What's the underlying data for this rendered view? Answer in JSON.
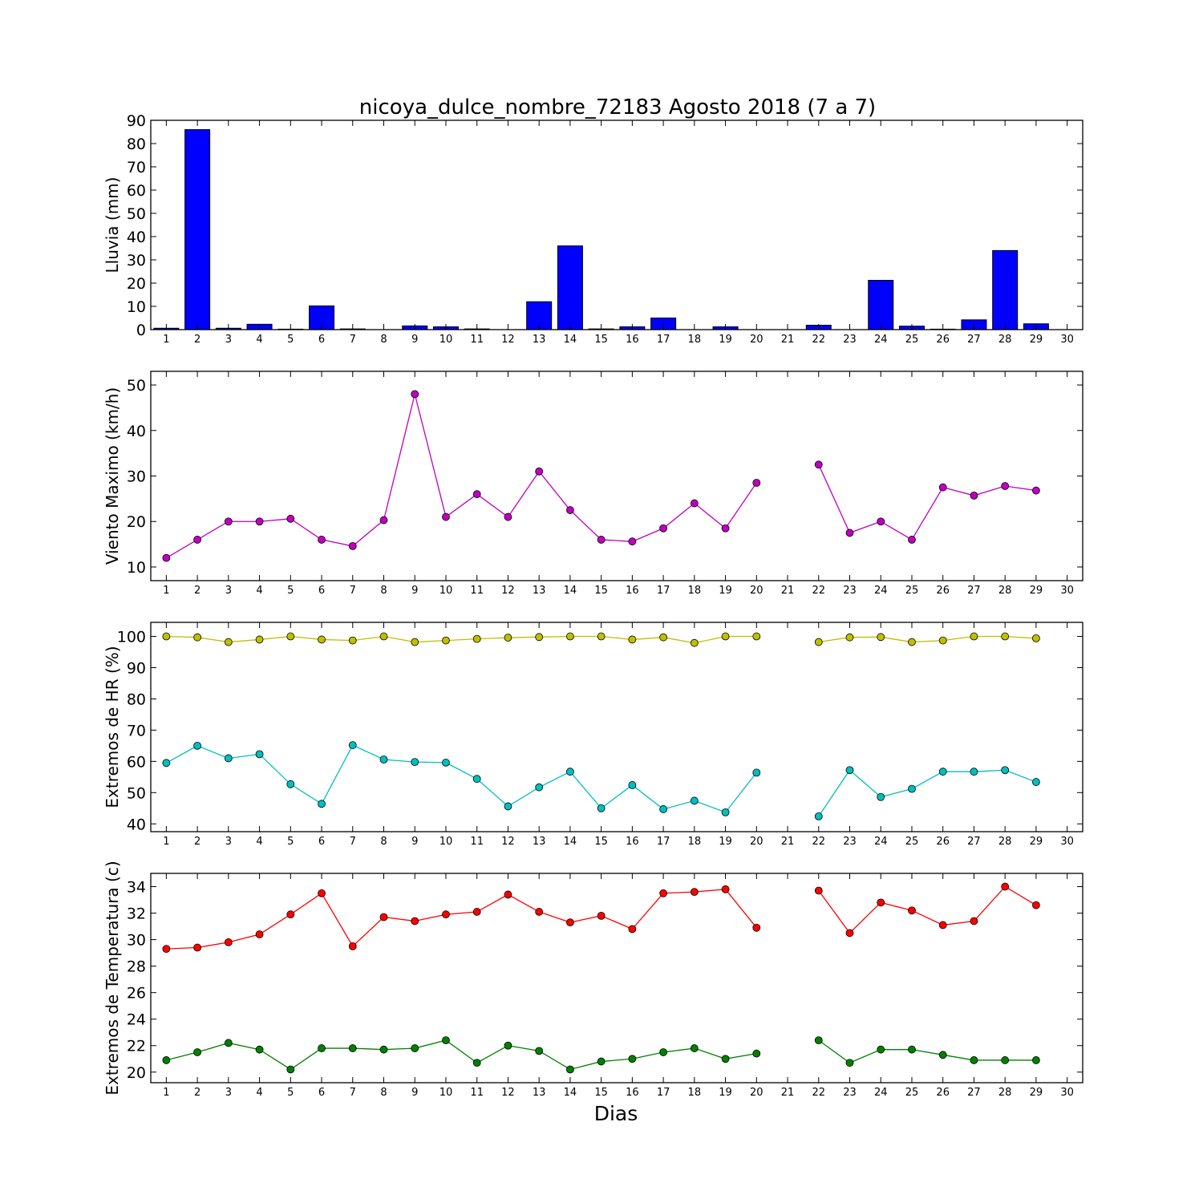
{
  "title": "nicoya_dulce_nombre_72183 Agosto 2018  (7 a 7)",
  "xlabel": "Dias",
  "chart_data": [
    {
      "type": "bar",
      "ylabel": "Lluvia (mm)",
      "ylim": [
        0,
        90
      ],
      "yticks": [
        0,
        10,
        20,
        30,
        40,
        50,
        60,
        70,
        80,
        90
      ],
      "xlim": [
        0.5,
        30.5
      ],
      "xticks": [
        1,
        2,
        3,
        4,
        5,
        6,
        7,
        8,
        9,
        10,
        11,
        12,
        13,
        14,
        15,
        16,
        17,
        18,
        19,
        20,
        21,
        22,
        23,
        24,
        25,
        26,
        27,
        28,
        29,
        30
      ],
      "grid": false,
      "series": [
        {
          "color": "#0000ff",
          "x": [
            1,
            2,
            3,
            4,
            5,
            6,
            7,
            8,
            9,
            10,
            11,
            12,
            13,
            14,
            15,
            16,
            17,
            18,
            19,
            20,
            21,
            22,
            23,
            24,
            25,
            26,
            27,
            28,
            29,
            30
          ],
          "values": [
            0.6,
            86,
            0.6,
            2.3,
            0.2,
            10.2,
            0.3,
            0,
            1.6,
            1.2,
            0.3,
            0,
            12,
            36,
            0.3,
            1.2,
            5,
            0,
            1.2,
            0,
            0,
            1.9,
            0,
            21.2,
            1.5,
            0.2,
            4.2,
            34,
            2.5,
            0
          ]
        }
      ]
    },
    {
      "type": "line",
      "ylabel": "Viento Maximo (km/h)",
      "ylim": [
        7,
        53
      ],
      "yticks": [
        10,
        20,
        30,
        40,
        50
      ],
      "xlim": [
        0.5,
        30.5
      ],
      "xticks": [
        1,
        2,
        3,
        4,
        5,
        6,
        7,
        8,
        9,
        10,
        11,
        12,
        13,
        14,
        15,
        16,
        17,
        18,
        19,
        20,
        21,
        22,
        23,
        24,
        25,
        26,
        27,
        28,
        29,
        30
      ],
      "grid": false,
      "series": [
        {
          "color": "#bf00bf",
          "x": [
            1,
            2,
            3,
            4,
            5,
            6,
            7,
            8,
            9,
            10,
            11,
            12,
            13,
            14,
            15,
            16,
            17,
            18,
            19,
            20,
            21,
            22,
            23,
            24,
            25,
            26,
            27,
            28,
            29
          ],
          "values": [
            12,
            16,
            20,
            20,
            20.6,
            16,
            14.6,
            20.3,
            48,
            21,
            26,
            21,
            31,
            22.5,
            16,
            15.6,
            18.5,
            24,
            18.5,
            28.5,
            null,
            32.5,
            17.5,
            20,
            16,
            27.5,
            25.7,
            27.8,
            26.8
          ]
        }
      ]
    },
    {
      "type": "line",
      "ylabel": "Extremos de HR (%)",
      "ylim": [
        37.5,
        104.5
      ],
      "yticks": [
        40,
        50,
        60,
        70,
        80,
        90,
        100
      ],
      "xlim": [
        0.5,
        30.5
      ],
      "xticks": [
        1,
        2,
        3,
        4,
        5,
        6,
        7,
        8,
        9,
        10,
        11,
        12,
        13,
        14,
        15,
        16,
        17,
        18,
        19,
        20,
        21,
        22,
        23,
        24,
        25,
        26,
        27,
        28,
        29,
        30
      ],
      "grid": false,
      "series": [
        {
          "color": "#bfbf00",
          "x": [
            1,
            2,
            3,
            4,
            5,
            6,
            7,
            8,
            9,
            10,
            11,
            12,
            13,
            14,
            15,
            16,
            17,
            18,
            19,
            20,
            21,
            22,
            23,
            24,
            25,
            26,
            27,
            28,
            29
          ],
          "values": [
            100,
            99.7,
            98.2,
            99,
            100,
            99,
            98.7,
            100,
            98.2,
            98.7,
            99.2,
            99.6,
            99.8,
            100,
            100,
            99,
            99.7,
            97.9,
            100,
            100,
            null,
            98.2,
            99.7,
            99.8,
            98.2,
            98.7,
            100,
            100,
            99.4
          ]
        },
        {
          "color": "#00bfbf",
          "x": [
            1,
            2,
            3,
            4,
            5,
            6,
            7,
            8,
            9,
            10,
            11,
            12,
            13,
            14,
            15,
            16,
            17,
            18,
            19,
            20,
            21,
            22,
            23,
            24,
            25,
            26,
            27,
            28,
            29
          ],
          "values": [
            59.5,
            65,
            61,
            62.3,
            52.7,
            46.4,
            65.2,
            60.6,
            59.8,
            59.6,
            54.4,
            45.6,
            51.7,
            56.7,
            45,
            52.4,
            44.7,
            47.4,
            43.7,
            56.4,
            null,
            42.4,
            57.2,
            48.6,
            51.2,
            56.7,
            56.7,
            57.2,
            53.4
          ]
        }
      ]
    },
    {
      "type": "line",
      "ylabel": "Extremos de Temperatura (c)",
      "ylim": [
        19.2,
        35
      ],
      "yticks": [
        20,
        22,
        24,
        26,
        28,
        30,
        32,
        34
      ],
      "xlim": [
        0.5,
        30.5
      ],
      "xticks": [
        1,
        2,
        3,
        4,
        5,
        6,
        7,
        8,
        9,
        10,
        11,
        12,
        13,
        14,
        15,
        16,
        17,
        18,
        19,
        20,
        21,
        22,
        23,
        24,
        25,
        26,
        27,
        28,
        29,
        30
      ],
      "grid": false,
      "series": [
        {
          "color": "#ff0000",
          "x": [
            1,
            2,
            3,
            4,
            5,
            6,
            7,
            8,
            9,
            10,
            11,
            12,
            13,
            14,
            15,
            16,
            17,
            18,
            19,
            20,
            21,
            22,
            23,
            24,
            25,
            26,
            27,
            28,
            29
          ],
          "values": [
            29.3,
            29.4,
            29.8,
            30.4,
            31.9,
            33.5,
            29.5,
            31.7,
            31.4,
            31.9,
            32.1,
            33.4,
            32.1,
            31.3,
            31.8,
            30.8,
            33.5,
            33.6,
            33.8,
            30.9,
            null,
            33.7,
            30.5,
            32.8,
            32.2,
            31.1,
            31.4,
            34,
            32.6
          ]
        },
        {
          "color": "#008000",
          "x": [
            1,
            2,
            3,
            4,
            5,
            6,
            7,
            8,
            9,
            10,
            11,
            12,
            13,
            14,
            15,
            16,
            17,
            18,
            19,
            20,
            21,
            22,
            23,
            24,
            25,
            26,
            27,
            28,
            29
          ],
          "values": [
            20.9,
            21.5,
            22.2,
            21.7,
            20.2,
            21.8,
            21.8,
            21.7,
            21.8,
            22.4,
            20.7,
            22,
            21.6,
            20.2,
            20.8,
            21,
            21.5,
            21.8,
            21,
            21.4,
            null,
            22.4,
            20.7,
            21.7,
            21.7,
            21.3,
            20.9,
            20.9,
            20.9
          ]
        }
      ]
    }
  ]
}
